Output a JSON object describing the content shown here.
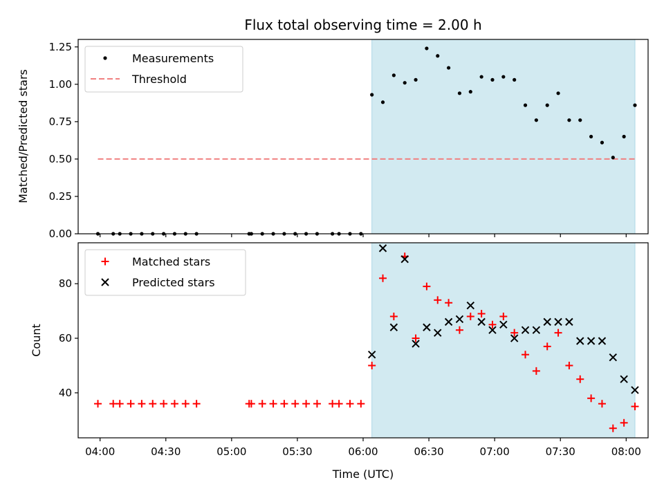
{
  "chart_data": [
    {
      "type": "scatter",
      "title": "Flux total observing time = 2.00 h",
      "xlabel": "",
      "ylabel": "Matched/Predicted stars",
      "ylim": [
        0,
        1.3
      ],
      "y_ticks": [
        "0.00",
        "0.25",
        "0.50",
        "0.75",
        "1.00",
        "1.25"
      ],
      "x_range": [
        "03:50",
        "08:10"
      ],
      "shaded_interval": [
        "06:04",
        "08:04"
      ],
      "shade_color": "#add8e6",
      "legend": {
        "position": "top-left",
        "entries": [
          "Measurements",
          "Threshold"
        ]
      },
      "threshold": {
        "name": "Threshold",
        "value": 0.5,
        "x_start": "03:59",
        "x_end": "08:04",
        "color": "#f08080"
      },
      "series": [
        {
          "name": "Measurements",
          "marker": "dot",
          "color": "#000000",
          "points": [
            [
              "03:59",
              0
            ],
            [
              "04:06",
              0
            ],
            [
              "04:09",
              0
            ],
            [
              "04:14",
              0
            ],
            [
              "04:19",
              0
            ],
            [
              "04:24",
              0
            ],
            [
              "04:29",
              0
            ],
            [
              "04:34",
              0
            ],
            [
              "04:39",
              0
            ],
            [
              "04:44",
              0
            ],
            [
              "05:08",
              0
            ],
            [
              "05:09",
              0
            ],
            [
              "05:14",
              0
            ],
            [
              "05:19",
              0
            ],
            [
              "05:24",
              0
            ],
            [
              "05:29",
              0
            ],
            [
              "05:34",
              0
            ],
            [
              "05:39",
              0
            ],
            [
              "05:46",
              0
            ],
            [
              "05:49",
              0
            ],
            [
              "05:54",
              0
            ],
            [
              "05:59",
              0
            ],
            [
              "06:04",
              0.93
            ],
            [
              "06:09",
              0.88
            ],
            [
              "06:14",
              1.06
            ],
            [
              "06:19",
              1.01
            ],
            [
              "06:24",
              1.03
            ],
            [
              "06:29",
              1.24
            ],
            [
              "06:34",
              1.19
            ],
            [
              "06:39",
              1.11
            ],
            [
              "06:44",
              0.94
            ],
            [
              "06:49",
              0.95
            ],
            [
              "06:54",
              1.05
            ],
            [
              "06:59",
              1.03
            ],
            [
              "07:04",
              1.05
            ],
            [
              "07:09",
              1.03
            ],
            [
              "07:14",
              0.86
            ],
            [
              "07:19",
              0.76
            ],
            [
              "07:24",
              0.86
            ],
            [
              "07:29",
              0.94
            ],
            [
              "07:34",
              0.76
            ],
            [
              "07:39",
              0.76
            ],
            [
              "07:44",
              0.65
            ],
            [
              "07:49",
              0.61
            ],
            [
              "07:54",
              0.51
            ],
            [
              "07:59",
              0.65
            ],
            [
              "08:04",
              0.86
            ]
          ]
        }
      ]
    },
    {
      "type": "scatter",
      "title": "",
      "xlabel": "Time (UTC)",
      "ylabel": "Count",
      "ylim": [
        23.5,
        95
      ],
      "y_ticks": [
        "40",
        "60",
        "80"
      ],
      "x_ticks": [
        "04:00",
        "04:30",
        "05:00",
        "05:30",
        "06:00",
        "06:30",
        "07:00",
        "07:30",
        "08:00"
      ],
      "x_range": [
        "03:50",
        "08:10"
      ],
      "shaded_interval": [
        "06:04",
        "08:04"
      ],
      "shade_color": "#add8e6",
      "legend": {
        "position": "top-left",
        "entries": [
          "Matched stars",
          "Predicted stars"
        ]
      },
      "series": [
        {
          "name": "Matched stars",
          "marker": "plus",
          "color": "#ff0000",
          "points": [
            [
              "03:59",
              36
            ],
            [
              "04:06",
              36
            ],
            [
              "04:09",
              36
            ],
            [
              "04:14",
              36
            ],
            [
              "04:19",
              36
            ],
            [
              "04:24",
              36
            ],
            [
              "04:29",
              36
            ],
            [
              "04:34",
              36
            ],
            [
              "04:39",
              36
            ],
            [
              "04:44",
              36
            ],
            [
              "05:08",
              36
            ],
            [
              "05:09",
              36
            ],
            [
              "05:14",
              36
            ],
            [
              "05:19",
              36
            ],
            [
              "05:24",
              36
            ],
            [
              "05:29",
              36
            ],
            [
              "05:34",
              36
            ],
            [
              "05:39",
              36
            ],
            [
              "05:46",
              36
            ],
            [
              "05:49",
              36
            ],
            [
              "05:54",
              36
            ],
            [
              "05:59",
              36
            ],
            [
              "06:04",
              50
            ],
            [
              "06:09",
              82
            ],
            [
              "06:14",
              68
            ],
            [
              "06:19",
              90
            ],
            [
              "06:24",
              60
            ],
            [
              "06:29",
              79
            ],
            [
              "06:34",
              74
            ],
            [
              "06:39",
              73
            ],
            [
              "06:44",
              63
            ],
            [
              "06:49",
              68
            ],
            [
              "06:54",
              69
            ],
            [
              "06:59",
              65
            ],
            [
              "07:04",
              68
            ],
            [
              "07:09",
              62
            ],
            [
              "07:14",
              54
            ],
            [
              "07:19",
              48
            ],
            [
              "07:24",
              57
            ],
            [
              "07:29",
              62
            ],
            [
              "07:34",
              50
            ],
            [
              "07:39",
              45
            ],
            [
              "07:44",
              38
            ],
            [
              "07:49",
              36
            ],
            [
              "07:54",
              27
            ],
            [
              "07:59",
              29
            ],
            [
              "08:04",
              35
            ]
          ]
        },
        {
          "name": "Predicted stars",
          "marker": "x",
          "color": "#000000",
          "points": [
            [
              "06:04",
              54
            ],
            [
              "06:09",
              93
            ],
            [
              "06:14",
              64
            ],
            [
              "06:19",
              89
            ],
            [
              "06:24",
              58
            ],
            [
              "06:29",
              64
            ],
            [
              "06:34",
              62
            ],
            [
              "06:39",
              66
            ],
            [
              "06:44",
              67
            ],
            [
              "06:49",
              72
            ],
            [
              "06:54",
              66
            ],
            [
              "06:59",
              63
            ],
            [
              "07:04",
              65
            ],
            [
              "07:09",
              60
            ],
            [
              "07:14",
              63
            ],
            [
              "07:19",
              63
            ],
            [
              "07:24",
              66
            ],
            [
              "07:29",
              66
            ],
            [
              "07:34",
              66
            ],
            [
              "07:39",
              59
            ],
            [
              "07:44",
              59
            ],
            [
              "07:49",
              59
            ],
            [
              "07:54",
              53
            ],
            [
              "07:59",
              45
            ],
            [
              "08:04",
              41
            ]
          ]
        }
      ]
    }
  ]
}
